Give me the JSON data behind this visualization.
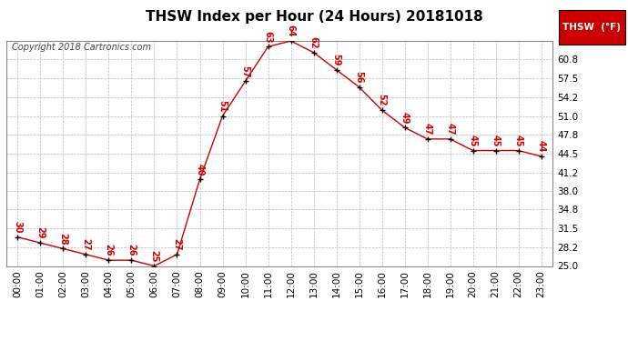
{
  "title": "THSW Index per Hour (24 Hours) 20181018",
  "copyright": "Copyright 2018 Cartronics.com",
  "legend_label": "THSW  (°F)",
  "hours": [
    0,
    1,
    2,
    3,
    4,
    5,
    6,
    7,
    8,
    9,
    10,
    11,
    12,
    13,
    14,
    15,
    16,
    17,
    18,
    19,
    20,
    21,
    22,
    23
  ],
  "values": [
    30,
    29,
    28,
    27,
    26,
    26,
    25,
    27,
    40,
    51,
    57,
    63,
    64,
    62,
    59,
    56,
    52,
    49,
    47,
    47,
    45,
    45,
    45,
    44
  ],
  "ylim": [
    25.0,
    64.0
  ],
  "yticks": [
    25.0,
    28.2,
    31.5,
    34.8,
    38.0,
    41.2,
    44.5,
    47.8,
    51.0,
    54.2,
    57.5,
    60.8,
    64.0
  ],
  "line_color": "#cc0000",
  "marker_color": "#000000",
  "data_label_color": "#cc0000",
  "grid_color": "#bbbbbb",
  "bg_color": "#ffffff",
  "title_fontsize": 11,
  "copyright_fontsize": 7,
  "tick_fontsize": 7.5,
  "label_fontsize": 7,
  "legend_bg": "#cc0000",
  "legend_text_color": "#ffffff"
}
